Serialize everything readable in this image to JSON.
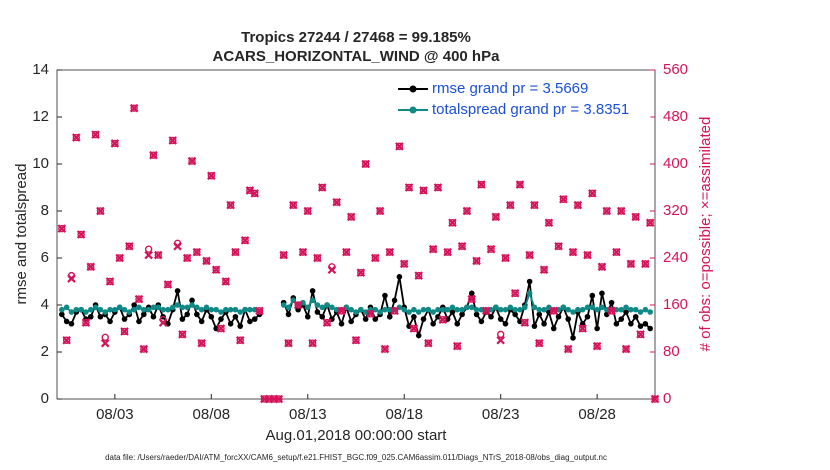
{
  "chart_data": {
    "type": "line",
    "title": "Tropics 27244 / 27468 = 99.185%",
    "subtitle": "ACARS_HORIZONTAL_WIND @ 400 hPa",
    "x_label": "Aug.01,2018 00:00:00 start",
    "y_label": "rmse and totalspread",
    "y2_label": "# of obs: o=possible; ×=assimilated",
    "footer": "data file: /Users/raeder/DAI/ATM_forcXX/CAM6_setup/f.e21.FHIST_BGC.f09_025.CAM6assim.011/Diags_NTrS_2018-08/obs_diag_output.nc",
    "legend_position": "upper right",
    "xlim": [
      0,
      31
    ],
    "xticks": [
      {
        "value": 3,
        "label": "08/03"
      },
      {
        "value": 8,
        "label": "08/08"
      },
      {
        "value": 13,
        "label": "08/13"
      },
      {
        "value": 18,
        "label": "08/18"
      },
      {
        "value": 23,
        "label": "08/23"
      },
      {
        "value": 28,
        "label": "08/28"
      }
    ],
    "ylim": [
      0,
      14
    ],
    "yticks": [
      0,
      2,
      4,
      6,
      8,
      10,
      12,
      14
    ],
    "y2lim": [
      0,
      560
    ],
    "y2ticks": [
      0,
      80,
      160,
      240,
      320,
      400,
      480,
      560
    ],
    "x": [
      0.25,
      0.5,
      0.75,
      1,
      1.25,
      1.5,
      1.75,
      2,
      2.25,
      2.5,
      2.75,
      3,
      3.25,
      3.5,
      3.75,
      4,
      4.25,
      4.5,
      4.75,
      5,
      5.25,
      5.5,
      5.75,
      6,
      6.25,
      6.5,
      6.75,
      7,
      7.25,
      7.5,
      7.75,
      8,
      8.25,
      8.5,
      8.75,
      9,
      9.25,
      9.5,
      9.75,
      10,
      10.25,
      10.5,
      10.75,
      11,
      11.25,
      11.5,
      11.75,
      12,
      12.25,
      12.5,
      12.75,
      13,
      13.25,
      13.5,
      13.75,
      14,
      14.25,
      14.5,
      14.75,
      15,
      15.25,
      15.5,
      15.75,
      16,
      16.25,
      16.5,
      16.75,
      17,
      17.25,
      17.5,
      17.75,
      18,
      18.25,
      18.5,
      18.75,
      19,
      19.25,
      19.5,
      19.75,
      20,
      20.25,
      20.5,
      20.75,
      21,
      21.25,
      21.5,
      21.75,
      22,
      22.25,
      22.5,
      22.75,
      23,
      23.25,
      23.5,
      23.75,
      24,
      24.25,
      24.5,
      24.75,
      25,
      25.25,
      25.5,
      25.75,
      26,
      26.25,
      26.5,
      26.75,
      27,
      27.25,
      27.5,
      27.75,
      28,
      28.25,
      28.5,
      28.75,
      29,
      29.25,
      29.5,
      29.75,
      30,
      30.25,
      30.5,
      30.75,
      31
    ],
    "series": [
      {
        "name": "rmse grand pr = 3.5669",
        "color": "#000000",
        "marker": "dot",
        "values": [
          3.6,
          3.3,
          3.2,
          3.7,
          3.8,
          3.4,
          3.5,
          4.0,
          3.5,
          3.6,
          3.3,
          3.7,
          3.9,
          3.4,
          3.6,
          4.0,
          3.3,
          3.6,
          3.9,
          3.5,
          4.0,
          3.5,
          3.2,
          3.8,
          4.6,
          3.4,
          3.6,
          4.2,
          3.6,
          3.3,
          3.8,
          3.5,
          3.0,
          3.4,
          3.7,
          3.2,
          3.5,
          3.1,
          3.8,
          3.3,
          3.4,
          3.6,
          null,
          null,
          null,
          null,
          4.1,
          3.6,
          4.3,
          3.8,
          4.0,
          3.5,
          4.6,
          3.7,
          3.5,
          4.0,
          3.4,
          3.7,
          3.2,
          3.9,
          3.3,
          3.6,
          3.8,
          3.4,
          3.9,
          3.4,
          3.6,
          4.4,
          3.5,
          4.2,
          5.2,
          3.9,
          3.1,
          3.5,
          2.7,
          3.4,
          3.8,
          3.2,
          3.5,
          3.9,
          3.4,
          3.7,
          3.2,
          3.6,
          3.9,
          4.5,
          3.6,
          3.3,
          3.7,
          3.5,
          3.9,
          3.4,
          3.2,
          3.8,
          3.6,
          3.3,
          4.0,
          5.0,
          3.1,
          3.6,
          3.2,
          3.7,
          3.0,
          3.5,
          3.9,
          3.4,
          2.6,
          3.7,
          3.2,
          3.5,
          4.4,
          3.0,
          4.5,
          3.6,
          4.1,
          3.2,
          3.4,
          3.7,
          3.2,
          3.5,
          3.1,
          3.2,
          3.0,
          null
        ]
      },
      {
        "name": "totalspread grand pr = 3.8351",
        "color": "#0f8a87",
        "marker": "dot",
        "values": [
          3.8,
          3.9,
          3.7,
          3.8,
          3.8,
          3.7,
          3.8,
          3.9,
          3.8,
          3.7,
          3.8,
          3.8,
          3.9,
          3.8,
          3.7,
          3.8,
          3.9,
          3.8,
          3.8,
          3.9,
          3.9,
          3.8,
          3.8,
          3.9,
          4.0,
          3.9,
          3.9,
          4.0,
          3.9,
          3.8,
          3.9,
          3.8,
          3.8,
          3.7,
          3.8,
          3.8,
          3.8,
          3.7,
          3.8,
          3.8,
          3.8,
          3.7,
          null,
          null,
          null,
          null,
          4.0,
          3.9,
          4.2,
          4.0,
          4.1,
          3.9,
          4.2,
          4.0,
          3.9,
          4.0,
          3.9,
          3.8,
          3.8,
          3.9,
          3.8,
          3.7,
          3.8,
          3.7,
          3.8,
          3.8,
          3.7,
          3.8,
          3.8,
          3.8,
          3.9,
          3.8,
          3.7,
          3.8,
          3.7,
          3.8,
          3.8,
          3.7,
          3.8,
          3.8,
          3.8,
          3.9,
          3.8,
          3.8,
          3.9,
          3.9,
          3.8,
          3.8,
          3.8,
          3.8,
          3.9,
          3.8,
          3.8,
          3.9,
          3.8,
          3.8,
          3.9,
          4.5,
          3.9,
          3.8,
          3.8,
          3.9,
          3.8,
          3.8,
          3.9,
          3.8,
          3.7,
          3.8,
          3.8,
          3.9,
          3.9,
          3.8,
          3.9,
          3.8,
          3.8,
          3.8,
          3.8,
          3.9,
          3.8,
          3.8,
          3.7,
          3.8,
          3.7,
          null
        ]
      },
      {
        "color": "#d4145a",
        "axis": "y2",
        "marker": "circle",
        "values": [
          290,
          100,
          210,
          445,
          280,
          130,
          225,
          450,
          320,
          105,
          200,
          435,
          240,
          115,
          260,
          495,
          170,
          85,
          255,
          415,
          245,
          135,
          195,
          440,
          265,
          110,
          240,
          405,
          250,
          95,
          235,
          380,
          220,
          120,
          200,
          330,
          250,
          100,
          270,
          355,
          350,
          150,
          0,
          0,
          0,
          0,
          245,
          95,
          330,
          160,
          250,
          320,
          95,
          240,
          360,
          130,
          225,
          335,
          150,
          250,
          310,
          100,
          215,
          400,
          145,
          240,
          320,
          85,
          250,
          150,
          430,
          230,
          360,
          120,
          210,
          355,
          95,
          255,
          360,
          135,
          250,
          300,
          90,
          260,
          320,
          170,
          235,
          365,
          150,
          255,
          310,
          110,
          240,
          330,
          180,
          365,
          130,
          245,
          330,
          95,
          220,
          300,
          150,
          260,
          340,
          85,
          250,
          330,
          120,
          245,
          350,
          90,
          225,
          320,
          150,
          250,
          320,
          85,
          230,
          310,
          110,
          230,
          300,
          0
        ]
      },
      {
        "color": "#d4145a",
        "axis": "y2",
        "marker": "x",
        "values": [
          290,
          100,
          205,
          445,
          280,
          130,
          225,
          450,
          320,
          95,
          200,
          435,
          240,
          115,
          260,
          495,
          170,
          85,
          245,
          415,
          245,
          130,
          195,
          440,
          260,
          110,
          240,
          405,
          250,
          95,
          235,
          380,
          220,
          120,
          200,
          330,
          250,
          100,
          270,
          355,
          350,
          150,
          0,
          0,
          0,
          0,
          245,
          95,
          330,
          160,
          250,
          320,
          95,
          240,
          360,
          130,
          220,
          335,
          150,
          250,
          310,
          100,
          215,
          400,
          145,
          240,
          320,
          85,
          250,
          150,
          430,
          230,
          360,
          120,
          210,
          355,
          95,
          255,
          360,
          135,
          250,
          300,
          90,
          260,
          320,
          170,
          235,
          365,
          150,
          255,
          310,
          100,
          240,
          330,
          180,
          365,
          130,
          245,
          330,
          95,
          220,
          300,
          150,
          260,
          340,
          85,
          250,
          330,
          120,
          245,
          350,
          90,
          225,
          320,
          150,
          250,
          320,
          85,
          230,
          310,
          110,
          230,
          300,
          0
        ]
      }
    ]
  }
}
